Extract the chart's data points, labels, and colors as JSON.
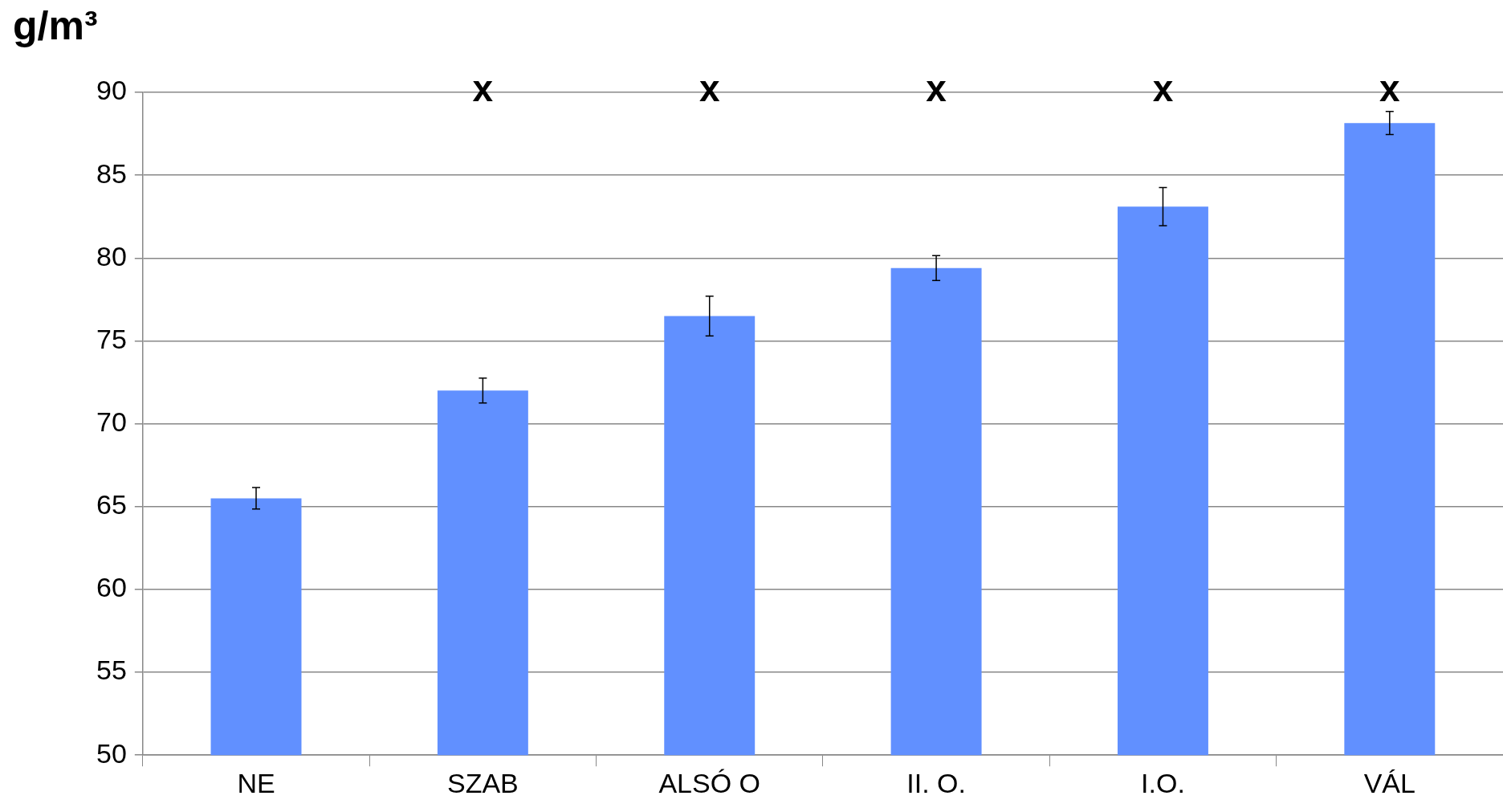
{
  "chart_data": {
    "type": "bar",
    "ylabel": "g/m³",
    "categories": [
      "NE",
      "SZAB",
      "ALSÓ O",
      "II. O.",
      "I.O.",
      "VÁL"
    ],
    "values": [
      65.5,
      72.0,
      76.5,
      79.4,
      83.1,
      88.15
    ],
    "errors": [
      0.65,
      0.75,
      1.2,
      0.75,
      1.15,
      0.7
    ],
    "color": "#6190ff",
    "ylim": [
      50,
      90
    ],
    "yticks": [
      50,
      55,
      60,
      65,
      70,
      75,
      80,
      85,
      90
    ],
    "grid": "y",
    "legend": false,
    "annotations": [
      "x",
      "x",
      "x",
      "x",
      "x"
    ]
  }
}
